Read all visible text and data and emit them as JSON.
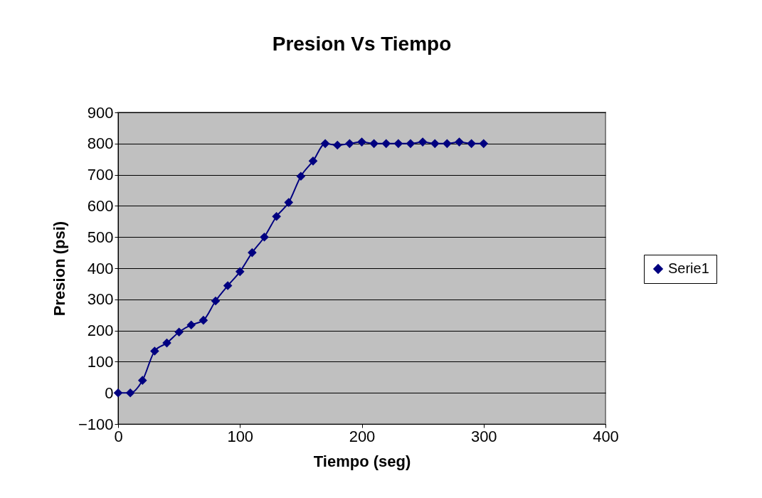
{
  "chart_data": {
    "type": "line",
    "title": "Presion Vs Tiempo",
    "xlabel": "Tiempo (seg)",
    "ylabel": "Presion (psi)",
    "x": [
      0,
      10,
      20,
      30,
      40,
      50,
      60,
      70,
      80,
      90,
      100,
      110,
      120,
      130,
      140,
      150,
      160,
      170,
      180,
      190,
      200,
      210,
      220,
      230,
      240,
      250,
      260,
      270,
      280,
      290,
      300
    ],
    "series": [
      {
        "name": "Serie1",
        "color": "#000080",
        "values": [
          0,
          0,
          40,
          134,
          160,
          195,
          218,
          233,
          295,
          344,
          389,
          450,
          500,
          566,
          611,
          695,
          744,
          800,
          795,
          800,
          805,
          800,
          800,
          800,
          800,
          805,
          800,
          800,
          805,
          800,
          800
        ]
      }
    ],
    "xlim": [
      0,
      400
    ],
    "xticks": [
      0,
      100,
      200,
      300,
      400
    ],
    "ylim": [
      -100,
      900
    ],
    "yticks": [
      -100,
      0,
      100,
      200,
      300,
      400,
      500,
      600,
      700,
      800,
      900
    ],
    "grid": "y",
    "legend": "right",
    "marker": "diamond",
    "line_style": "solid"
  }
}
